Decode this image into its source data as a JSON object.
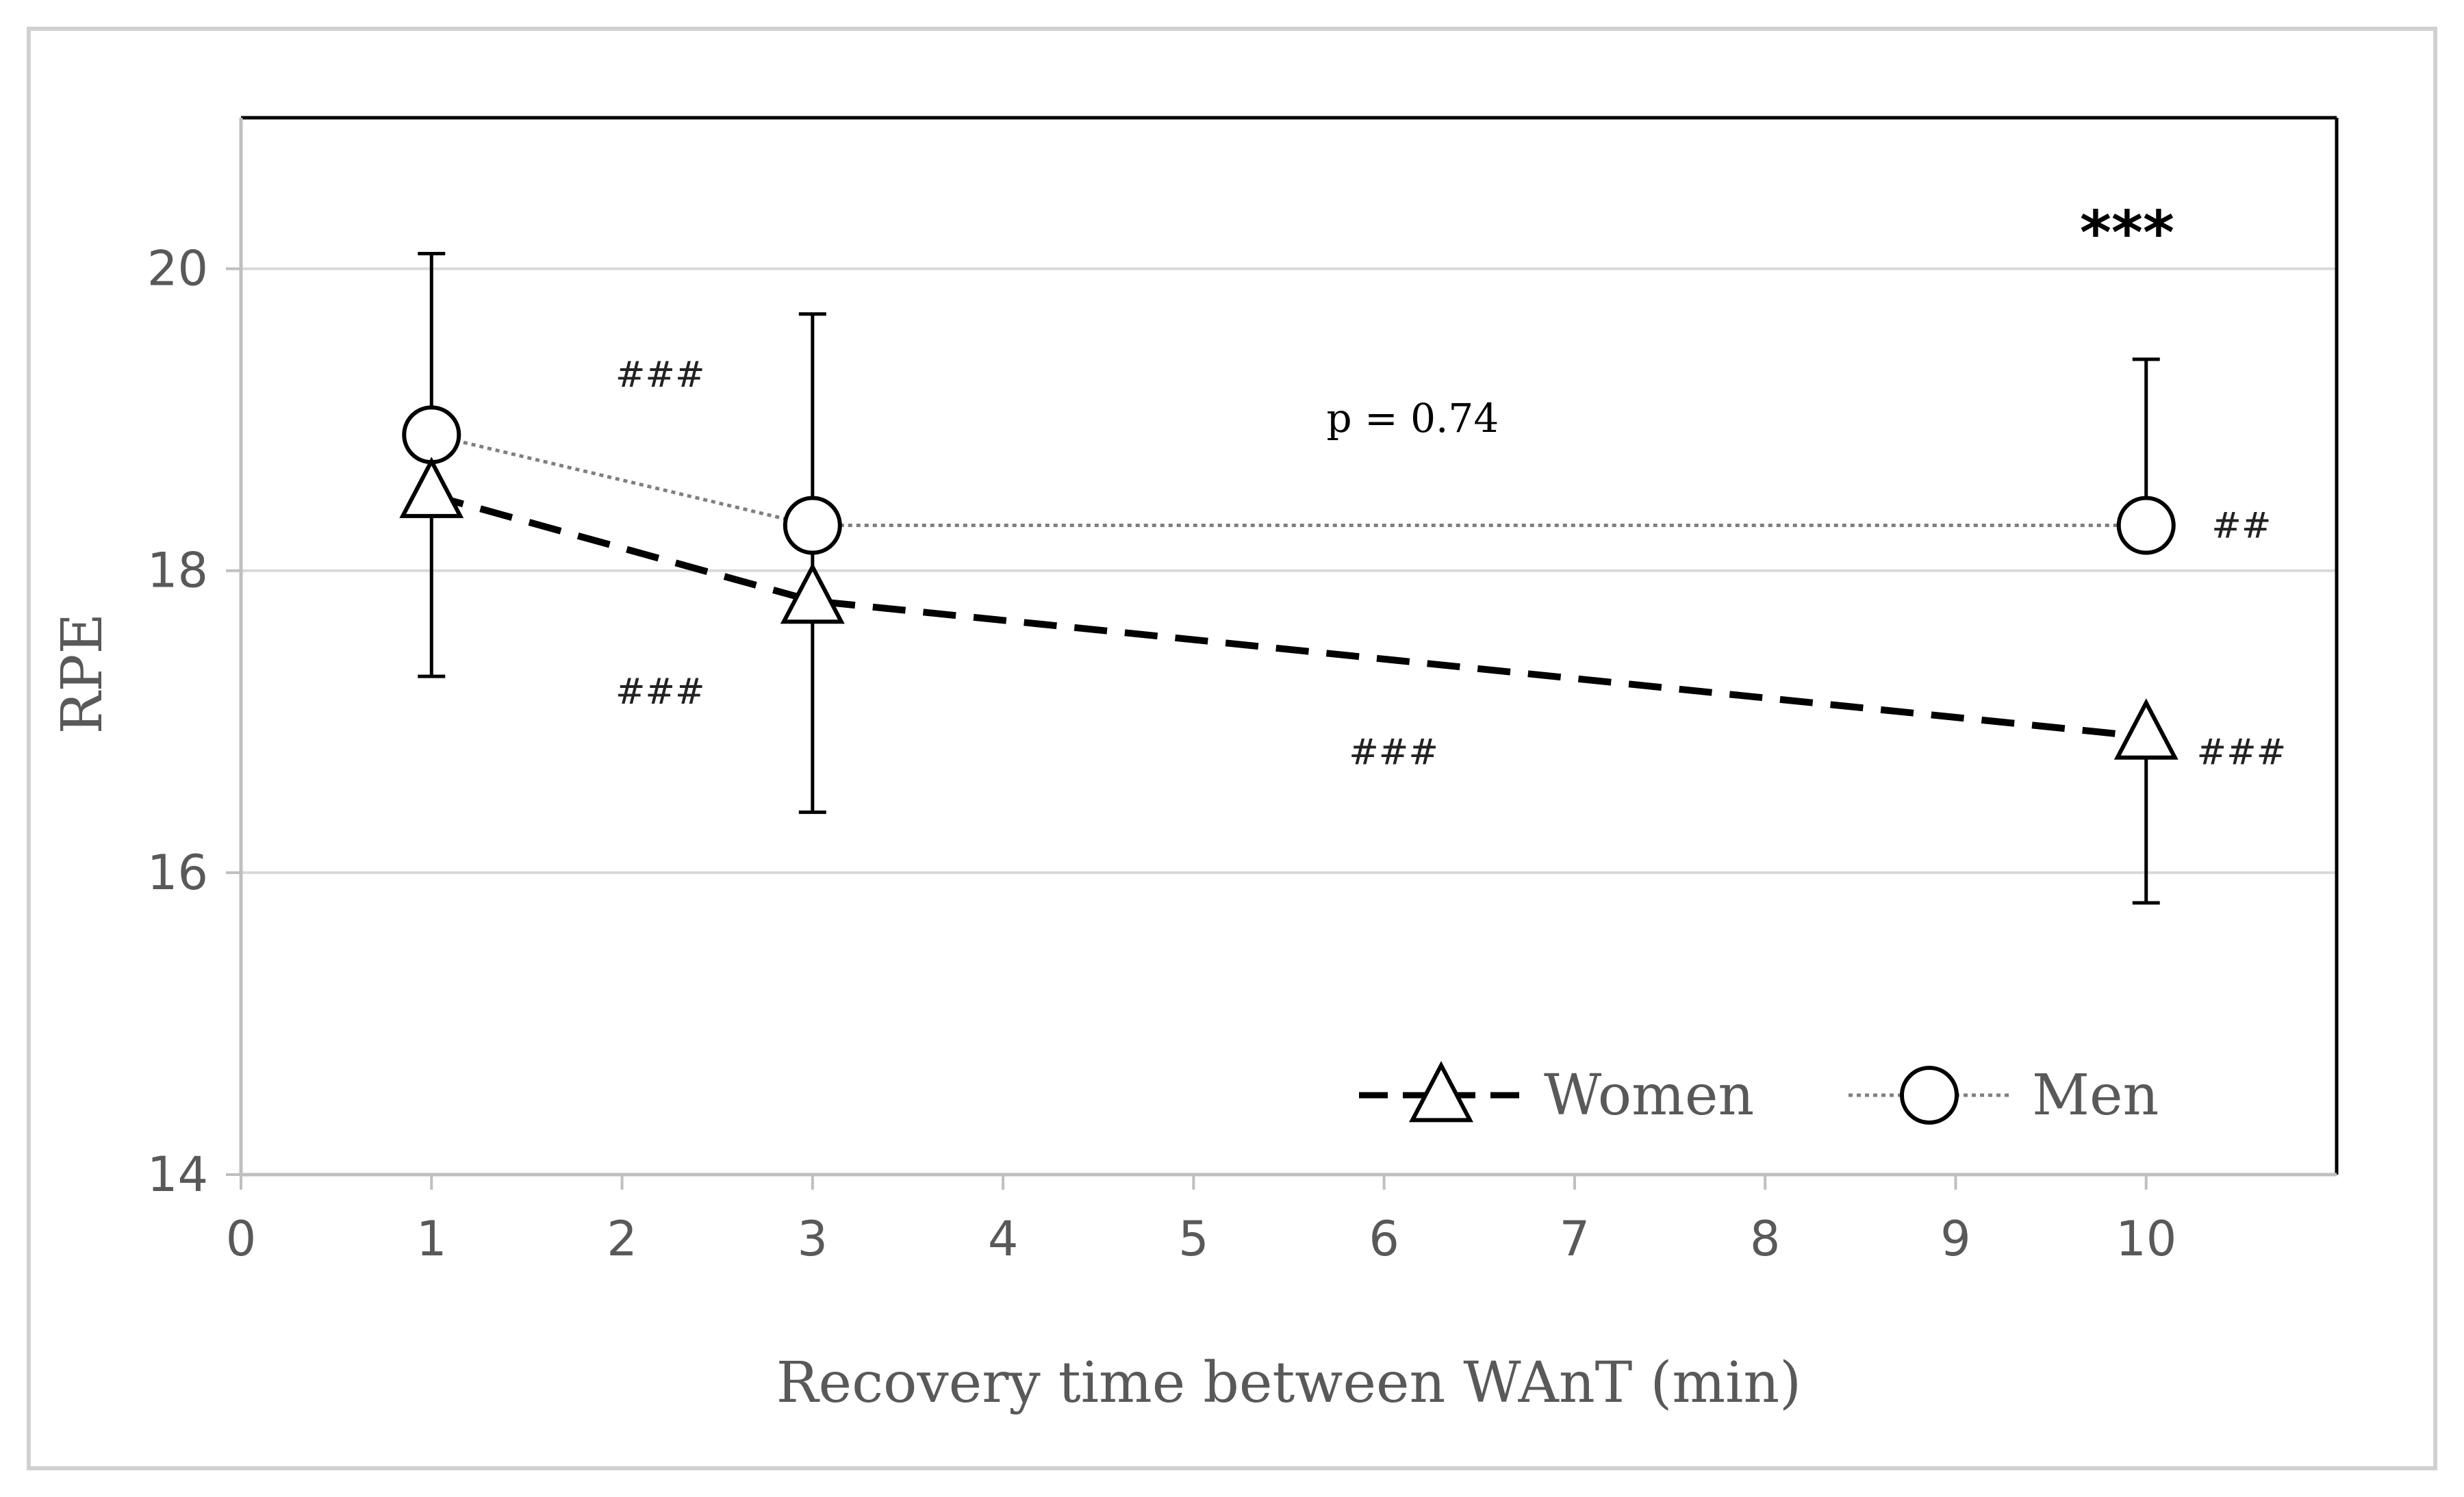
{
  "chart_data": {
    "type": "line",
    "title": "",
    "xlabel": "Recovery time between WAnT (min)",
    "ylabel": "RPE",
    "xlim": [
      0,
      11
    ],
    "ylim": [
      14,
      21
    ],
    "x_ticks": [
      0,
      1,
      2,
      3,
      4,
      5,
      6,
      7,
      8,
      9,
      10
    ],
    "x_tick_labels": [
      "0",
      "1",
      "2",
      "3",
      "4",
      "5",
      "6",
      "7",
      "8",
      "9",
      "10"
    ],
    "y_ticks": [
      14,
      16,
      18,
      20
    ],
    "y_tick_labels": [
      "14",
      "16",
      "18",
      "20"
    ],
    "grid": true,
    "legend_position": "bottom-right",
    "series": [
      {
        "name": "Women",
        "marker": "triangle",
        "line_style": "dashed",
        "color": "#000000",
        "x": [
          1,
          3,
          10
        ],
        "values": [
          18.5,
          17.8,
          16.9
        ],
        "error_upper": [
          null,
          19.7,
          null
        ],
        "error_lower": [
          17.3,
          16.4,
          15.8
        ]
      },
      {
        "name": "Men",
        "marker": "circle",
        "line_style": "dotted",
        "color": "#7f7f7f",
        "x": [
          1,
          3,
          10
        ],
        "values": [
          18.9,
          18.3,
          18.3
        ],
        "error_upper": [
          20.1,
          null,
          19.4
        ],
        "error_lower": [
          null,
          null,
          null
        ]
      }
    ],
    "annotations": [
      {
        "text": "###",
        "x": 2.2,
        "y": 19.3,
        "style": "small"
      },
      {
        "text": "###",
        "x": 2.2,
        "y": 17.2,
        "style": "small"
      },
      {
        "text": "###",
        "x": 6.05,
        "y": 16.8,
        "style": "small"
      },
      {
        "text": "##",
        "x": 10.5,
        "y": 18.3,
        "style": "small"
      },
      {
        "text": "###",
        "x": 10.5,
        "y": 16.8,
        "style": "small"
      },
      {
        "text": "***",
        "x": 9.9,
        "y": 20.3,
        "style": "big"
      },
      {
        "text": "p = 0.74",
        "x": 6.15,
        "y": 19.0,
        "style": "pval"
      }
    ]
  }
}
